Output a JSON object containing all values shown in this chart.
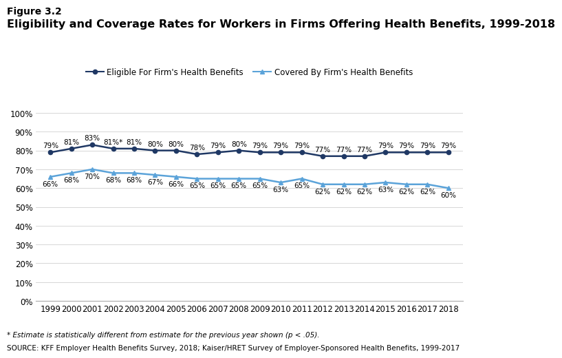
{
  "figure_label": "Figure 3.2",
  "title": "Eligibility and Coverage Rates for Workers in Firms Offering Health Benefits, 1999-2018",
  "years": [
    1999,
    2000,
    2001,
    2002,
    2003,
    2004,
    2005,
    2006,
    2007,
    2008,
    2009,
    2010,
    2011,
    2012,
    2013,
    2014,
    2015,
    2016,
    2017,
    2018
  ],
  "eligible": [
    79,
    81,
    83,
    81,
    81,
    80,
    80,
    78,
    79,
    80,
    79,
    79,
    79,
    77,
    77,
    77,
    79,
    79,
    79,
    79
  ],
  "covered": [
    66,
    68,
    70,
    68,
    68,
    67,
    66,
    65,
    65,
    65,
    65,
    63,
    65,
    62,
    62,
    62,
    63,
    62,
    62,
    60
  ],
  "eligible_star": [
    false,
    false,
    false,
    true,
    false,
    false,
    false,
    false,
    false,
    false,
    false,
    false,
    false,
    false,
    false,
    false,
    false,
    false,
    false,
    false
  ],
  "covered_star": [
    false,
    false,
    false,
    false,
    false,
    false,
    false,
    false,
    false,
    false,
    false,
    false,
    false,
    false,
    false,
    false,
    false,
    false,
    false,
    false
  ],
  "eligible_color": "#1f3864",
  "covered_color_light": "#5ba3d9",
  "ylim": [
    0,
    100
  ],
  "yticks": [
    0,
    10,
    20,
    30,
    40,
    50,
    60,
    70,
    80,
    90,
    100
  ],
  "ytick_labels": [
    "0%",
    "10%",
    "20%",
    "30%",
    "40%",
    "50%",
    "60%",
    "70%",
    "80%",
    "90%",
    "100%"
  ],
  "legend_eligible": "Eligible For Firm's Health Benefits",
  "legend_covered": "Covered By Firm's Health Benefits",
  "footnote1": "* Estimate is statistically different from estimate for the previous year shown (p < .05).",
  "footnote2": "SOURCE: KFF Employer Health Benefits Survey, 2018; Kaiser/HRET Survey of Employer-Sponsored Health Benefits, 1999-2017",
  "bg_color": "#ffffff",
  "label_fontsize": 7.5,
  "tick_fontsize": 8.5,
  "title_fontsize": 11.5,
  "figure_label_fontsize": 10
}
